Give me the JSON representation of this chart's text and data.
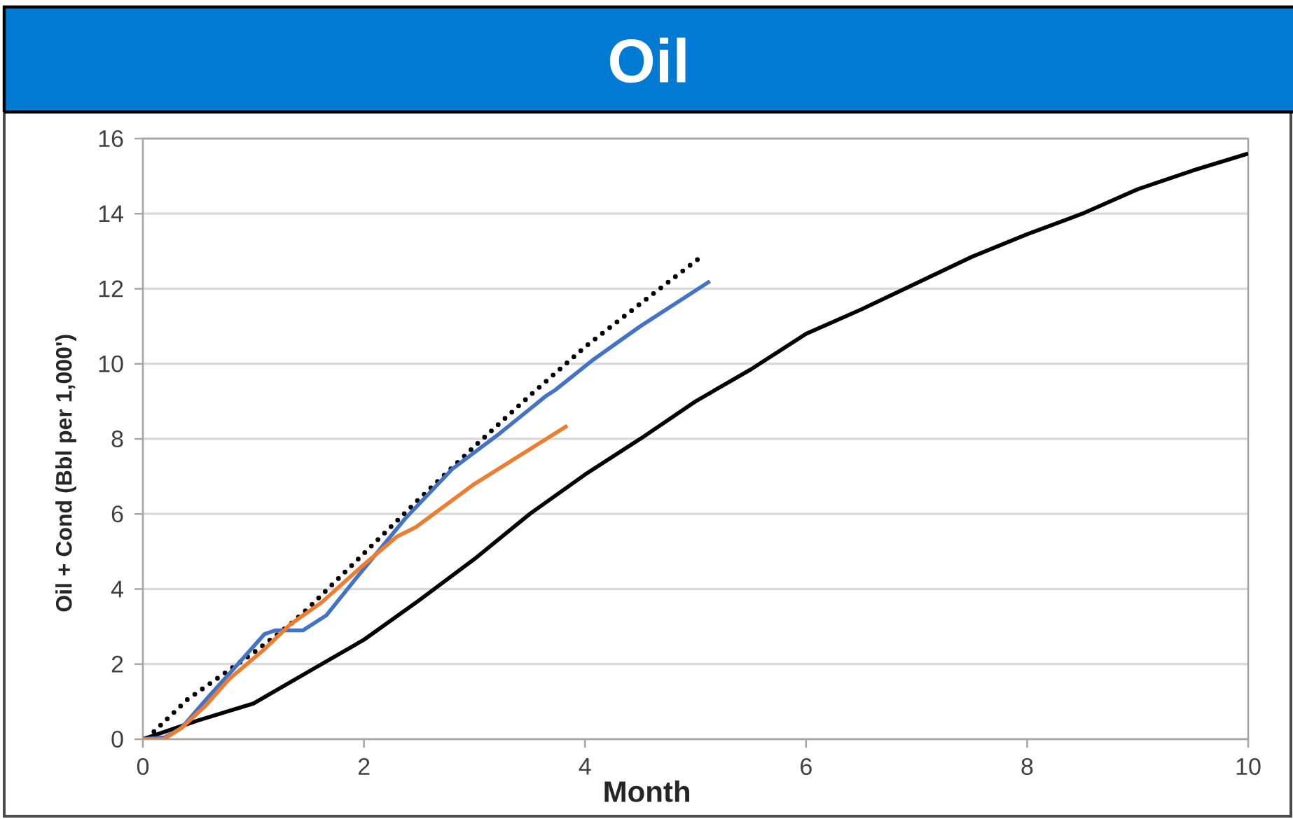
{
  "chart_data": {
    "type": "line",
    "title": "Oil",
    "xlabel": "Month",
    "ylabel": "Oil + Cond (Bbl per 1,000')",
    "xlim": [
      0,
      10
    ],
    "ylim": [
      0,
      16
    ],
    "xticks": [
      0,
      2,
      4,
      6,
      8,
      10
    ],
    "yticks": [
      0,
      2,
      4,
      6,
      8,
      10,
      12,
      14,
      16
    ],
    "grid": "y",
    "series": [
      {
        "color": "#000000",
        "x": [
          0,
          0.5,
          1,
          1.5,
          2,
          2.5,
          3,
          3.5,
          4,
          4.5,
          5,
          5.5,
          6,
          6.5,
          7,
          7.5,
          8,
          8.5,
          9,
          9.5,
          10
        ],
        "values": [
          0,
          0.5,
          0.95,
          1.8,
          2.65,
          3.7,
          4.8,
          6.0,
          7.05,
          8.0,
          9.0,
          9.85,
          10.8,
          11.45,
          12.15,
          12.85,
          13.45,
          14.0,
          14.65,
          15.15,
          15.6
        ]
      },
      {
        "color": "#000000",
        "line_style": "dotted",
        "x": [
          0.1,
          0.4,
          1,
          1.33,
          1.5,
          2,
          2.5,
          3,
          3.5,
          4,
          4.5,
          5.05
        ],
        "values": [
          0.2,
          1.05,
          2.3,
          3.05,
          3.5,
          4.95,
          6.4,
          7.8,
          9.15,
          10.45,
          11.6,
          12.85
        ]
      },
      {
        "color": "#4472C4",
        "x": [
          0,
          0.2,
          0.35,
          0.57,
          0.86,
          1.1,
          1.2,
          1.45,
          1.66,
          1.96,
          2.38,
          2.8,
          3.23,
          3.65,
          3.73,
          4.07,
          4.5,
          5.13
        ],
        "values": [
          0,
          0.05,
          0.3,
          1.05,
          2.0,
          2.8,
          2.9,
          2.9,
          3.3,
          4.4,
          5.9,
          7.2,
          8.15,
          9.15,
          9.3,
          10.1,
          11.0,
          12.2
        ]
      },
      {
        "color": "#ED7D31",
        "x": [
          0,
          0.19,
          0.35,
          0.57,
          0.78,
          1.1,
          1.33,
          1.62,
          1.96,
          2.3,
          2.47,
          3.0,
          3.84
        ],
        "values": [
          0,
          0,
          0.3,
          0.9,
          1.6,
          2.4,
          3.05,
          3.65,
          4.55,
          5.4,
          5.65,
          6.8,
          8.35
        ]
      }
    ]
  }
}
